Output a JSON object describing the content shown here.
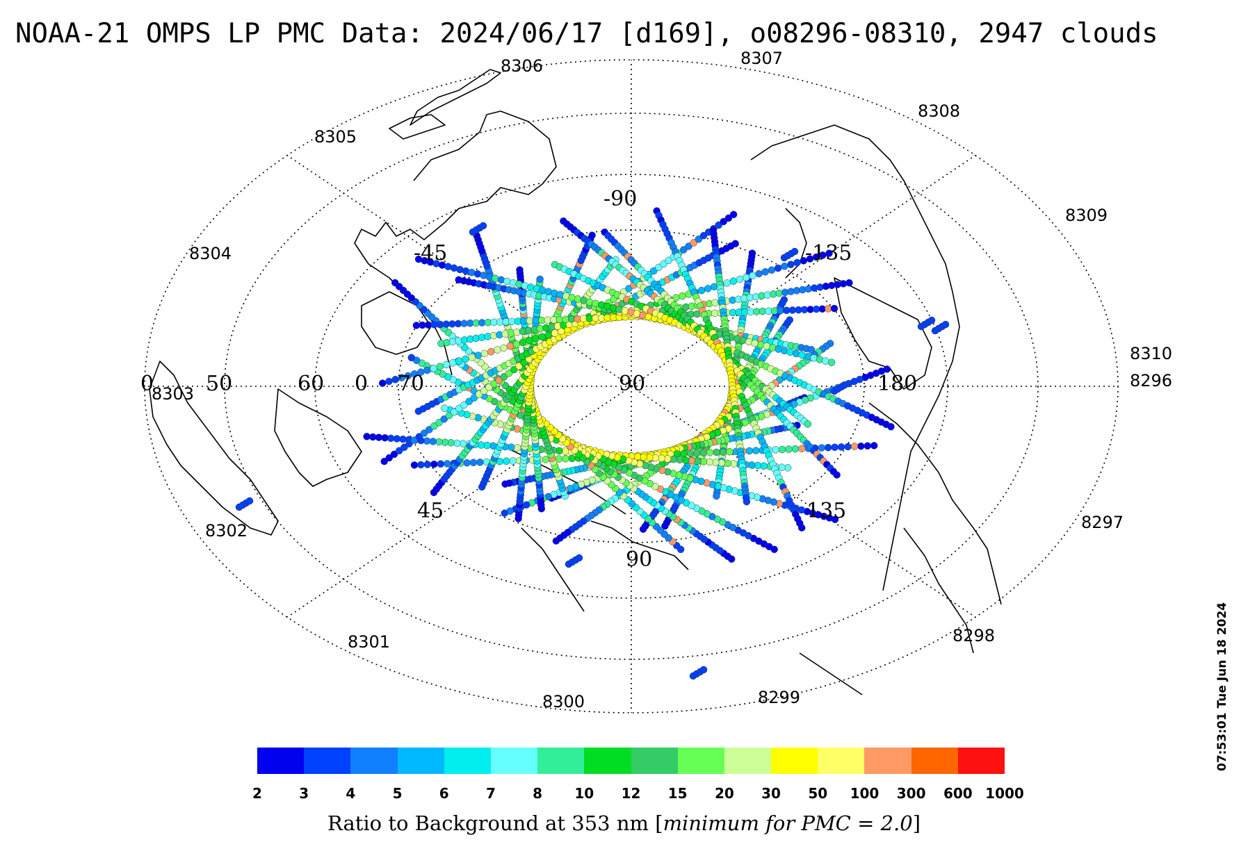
{
  "title": "NOAA-21 OMPS LP PMC Data: 2024/06/17 [d169], o08296-08310, 2947 clouds",
  "timestamp": "07:53:01 Tue Jun 18 2024",
  "colorbar": {
    "label_prefix": "Ratio to Background at 353 nm [",
    "label_italic": "minimum for PMC = 2.0",
    "label_suffix": "]",
    "ticks": [
      "2",
      "3",
      "4",
      "5",
      "6",
      "7",
      "8",
      "10",
      "12",
      "15",
      "20",
      "30",
      "50",
      "100",
      "300",
      "600",
      "1000"
    ],
    "colors": [
      "#0000ee",
      "#0040ff",
      "#1080ff",
      "#00b8ff",
      "#00eeee",
      "#66ffff",
      "#33ee99",
      "#00dd22",
      "#33cc66",
      "#66ff55",
      "#ccff99",
      "#ffff00",
      "#ffff66",
      "#ff9966",
      "#ff6600",
      "#ff1111"
    ]
  },
  "orbit_labels": [
    "8306",
    "8307",
    "8308",
    "8309",
    "8310",
    "8296",
    "8297",
    "8298",
    "8299",
    "8300",
    "8301",
    "8302",
    "8303",
    "8304",
    "8305"
  ],
  "lon_labels": [
    "-90",
    "-135",
    "180",
    "135",
    "90",
    "45",
    "0",
    "-45"
  ],
  "lat_labels": [
    "50",
    "60",
    "70",
    "0"
  ],
  "pole_label": "90"
}
